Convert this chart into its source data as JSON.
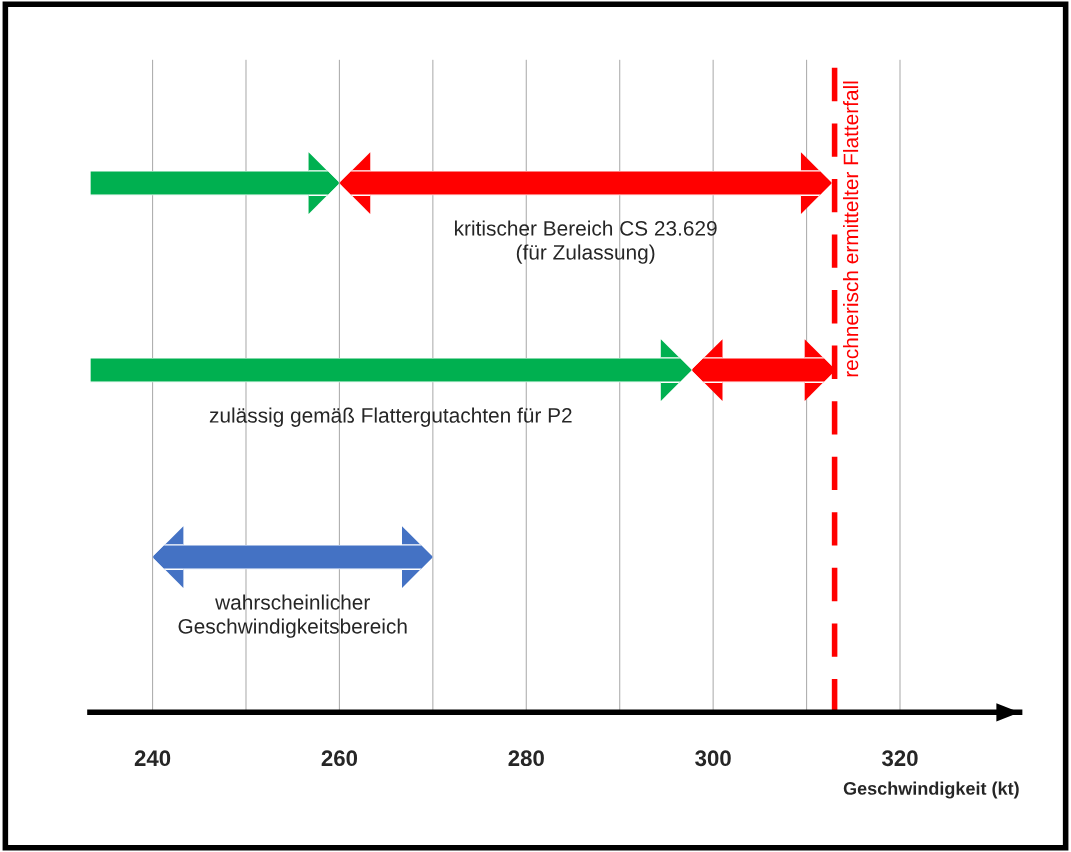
{
  "chart_data": {
    "type": "bar",
    "orientation": "horizontal",
    "categories": [
      null,
      null,
      null
    ],
    "series": [
      {
        "color": "#00b050",
        "base": [
          233.3,
          233.3,
          null
        ],
        "values": [
          26.7,
          64.4,
          null
        ]
      },
      {
        "color": "#ff0000",
        "base": [
          260,
          297.7,
          null
        ],
        "values": [
          52.7,
          15.4,
          null
        ]
      },
      {
        "color": "#4472c4",
        "base": [
          null,
          null,
          240
        ],
        "values": [
          null,
          null,
          30
        ]
      }
    ],
    "xlim": [
      233.3,
      332.8
    ],
    "xticks": [
      240,
      {
        "value": 250,
        "label": null
      },
      260,
      {
        "value": 270,
        "label": null
      },
      280,
      {
        "value": 290,
        "label": null
      },
      300,
      {
        "value": 310,
        "label": null
      },
      320
    ],
    "xlabel": "Geschwindigkeit (kt)",
    "annotations": [
      "kritischer Bereich CS 23.629\n(für Zulassung)",
      "zulässig gemäß Flattergutachten für P2",
      "wahrscheinlicher\nGeschwindigkeitsbereich"
    ],
    "ref_lines": [
      {
        "axis": "x",
        "value": 313,
        "label": "rechnerisch ermittelter Flatterfall",
        "color": "#ff0000",
        "line_style": "dashed"
      }
    ],
    "grid": "x",
    "legend": false,
    "tick_labels": "x"
  }
}
